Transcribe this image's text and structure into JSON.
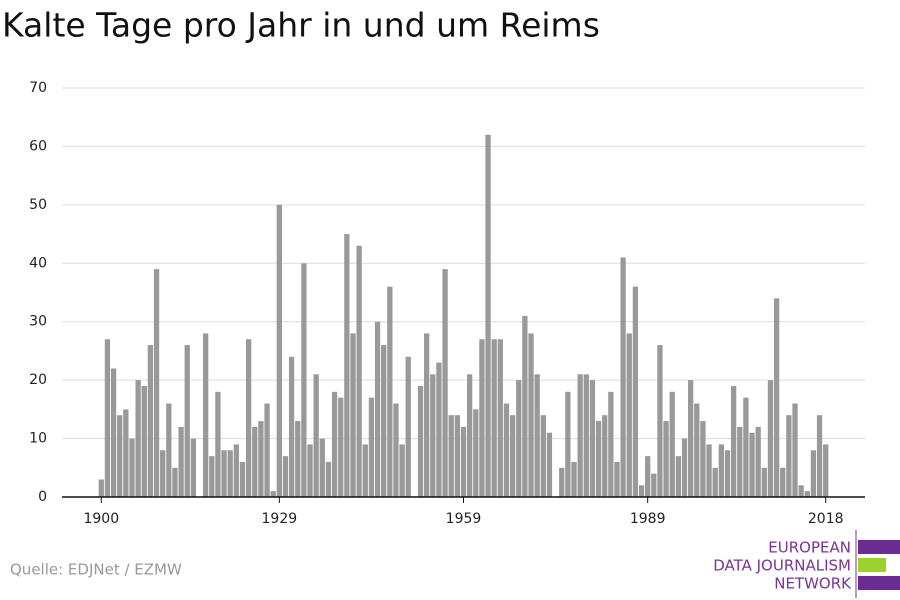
{
  "chart_data": {
    "type": "bar",
    "title": "Kalte Tage pro Jahr in und um Reims",
    "source": "Quelle: EDJNet / EZMW",
    "logo": [
      "EUROPEAN",
      "DATA JOURNALISM",
      "NETWORK"
    ],
    "color": "#999999",
    "x": [
      1900,
      1901,
      1902,
      1903,
      1904,
      1905,
      1906,
      1907,
      1908,
      1909,
      1910,
      1911,
      1912,
      1913,
      1914,
      1915,
      1916,
      1917,
      1918,
      1919,
      1920,
      1921,
      1922,
      1923,
      1924,
      1925,
      1926,
      1927,
      1928,
      1929,
      1930,
      1931,
      1932,
      1933,
      1934,
      1935,
      1936,
      1937,
      1938,
      1939,
      1940,
      1941,
      1942,
      1943,
      1944,
      1945,
      1946,
      1947,
      1948,
      1949,
      1950,
      1951,
      1952,
      1953,
      1954,
      1955,
      1956,
      1957,
      1958,
      1959,
      1960,
      1961,
      1962,
      1963,
      1964,
      1965,
      1966,
      1967,
      1968,
      1969,
      1970,
      1971,
      1972,
      1973,
      1974,
      1975,
      1976,
      1977,
      1978,
      1979,
      1980,
      1981,
      1982,
      1983,
      1984,
      1985,
      1986,
      1987,
      1988,
      1989,
      1990,
      1991,
      1992,
      1993,
      1994,
      1995,
      1996,
      1997,
      1998,
      1999,
      2000,
      2001,
      2002,
      2003,
      2004,
      2005,
      2006,
      2007,
      2008,
      2009,
      2010,
      2011,
      2012,
      2013,
      2014,
      2015,
      2016,
      2017,
      2018
    ],
    "values": [
      3,
      27,
      22,
      14,
      15,
      10,
      20,
      19,
      26,
      39,
      8,
      16,
      5,
      12,
      26,
      10,
      0,
      28,
      7,
      18,
      8,
      8,
      9,
      6,
      27,
      12,
      13,
      16,
      1,
      50,
      7,
      24,
      13,
      40,
      9,
      21,
      10,
      6,
      18,
      17,
      45,
      28,
      43,
      9,
      17,
      30,
      26,
      36,
      16,
      9,
      24,
      0,
      19,
      28,
      21,
      23,
      39,
      14,
      14,
      12,
      21,
      15,
      27,
      62,
      27,
      27,
      16,
      14,
      20,
      31,
      28,
      21,
      14,
      11,
      0,
      5,
      18,
      6,
      21,
      21,
      20,
      13,
      14,
      18,
      6,
      41,
      28,
      36,
      2,
      7,
      4,
      26,
      13,
      18,
      7,
      10,
      20,
      16,
      13,
      9,
      5,
      9,
      8,
      19,
      12,
      17,
      11,
      12,
      5,
      20,
      34,
      5,
      14,
      16,
      2,
      1,
      8,
      14,
      9
    ],
    "xlim": [
      1893.6,
      2024.4
    ],
    "xticks": [
      1900,
      1929,
      1959,
      1989,
      2018
    ],
    "ylim": [
      0,
      70
    ],
    "yticks": [
      0,
      10,
      20,
      30,
      40,
      50,
      60,
      70
    ],
    "grid": true
  }
}
